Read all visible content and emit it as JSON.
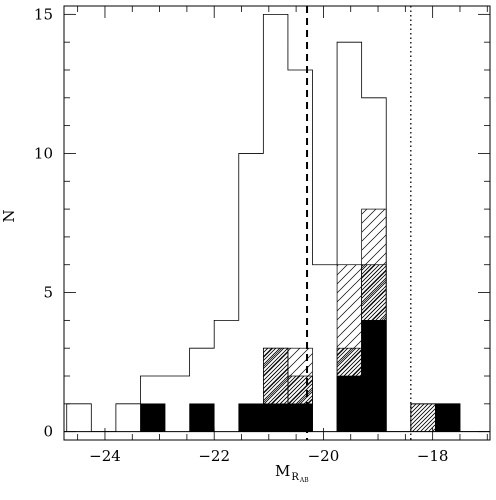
{
  "chart_data": {
    "type": "bar",
    "subtype": "step-histogram",
    "xlabel": "M",
    "xlabel_sub": "R",
    "xlabel_subsub": "AB",
    "ylabel": "N",
    "xlim": [
      -24.75,
      -16.95
    ],
    "ylim": [
      -0.3,
      15.3
    ],
    "x_ticks": [
      -24,
      -22,
      -20,
      -18
    ],
    "y_ticks": [
      0,
      5,
      10,
      15
    ],
    "reference_lines": [
      {
        "x": -20.3,
        "style": "dashed"
      },
      {
        "x": -18.4,
        "style": "dotted"
      }
    ],
    "bin_edges": [
      -24.7,
      -24.25,
      -23.8,
      -23.35,
      -22.9,
      -22.45,
      -22.0,
      -21.55,
      -21.1,
      -20.65,
      -20.2,
      -19.75,
      -19.3,
      -18.85,
      -18.4,
      -17.95,
      -17.5,
      -17.05
    ],
    "series": [
      {
        "name": "",
        "style": "outline",
        "values": [
          1,
          0,
          1,
          2,
          2,
          3,
          4,
          10,
          15,
          13,
          6,
          14,
          12,
          0,
          1,
          1,
          0
        ]
      },
      {
        "name": "",
        "style": "hatch-sparse",
        "values": [
          0,
          0,
          0,
          0,
          0,
          0,
          0,
          0,
          3,
          3,
          0,
          6,
          8,
          0,
          0,
          0,
          0
        ]
      },
      {
        "name": "",
        "style": "hatch-dense",
        "values": [
          0,
          0,
          0,
          0,
          0,
          0,
          0,
          0,
          3,
          2,
          0,
          3,
          6,
          0,
          1,
          0,
          0
        ]
      },
      {
        "name": "",
        "style": "filled",
        "values": [
          0,
          0,
          0,
          1,
          0,
          1,
          0,
          1,
          1,
          1,
          0,
          2,
          4,
          0,
          0,
          1,
          0
        ]
      }
    ]
  }
}
